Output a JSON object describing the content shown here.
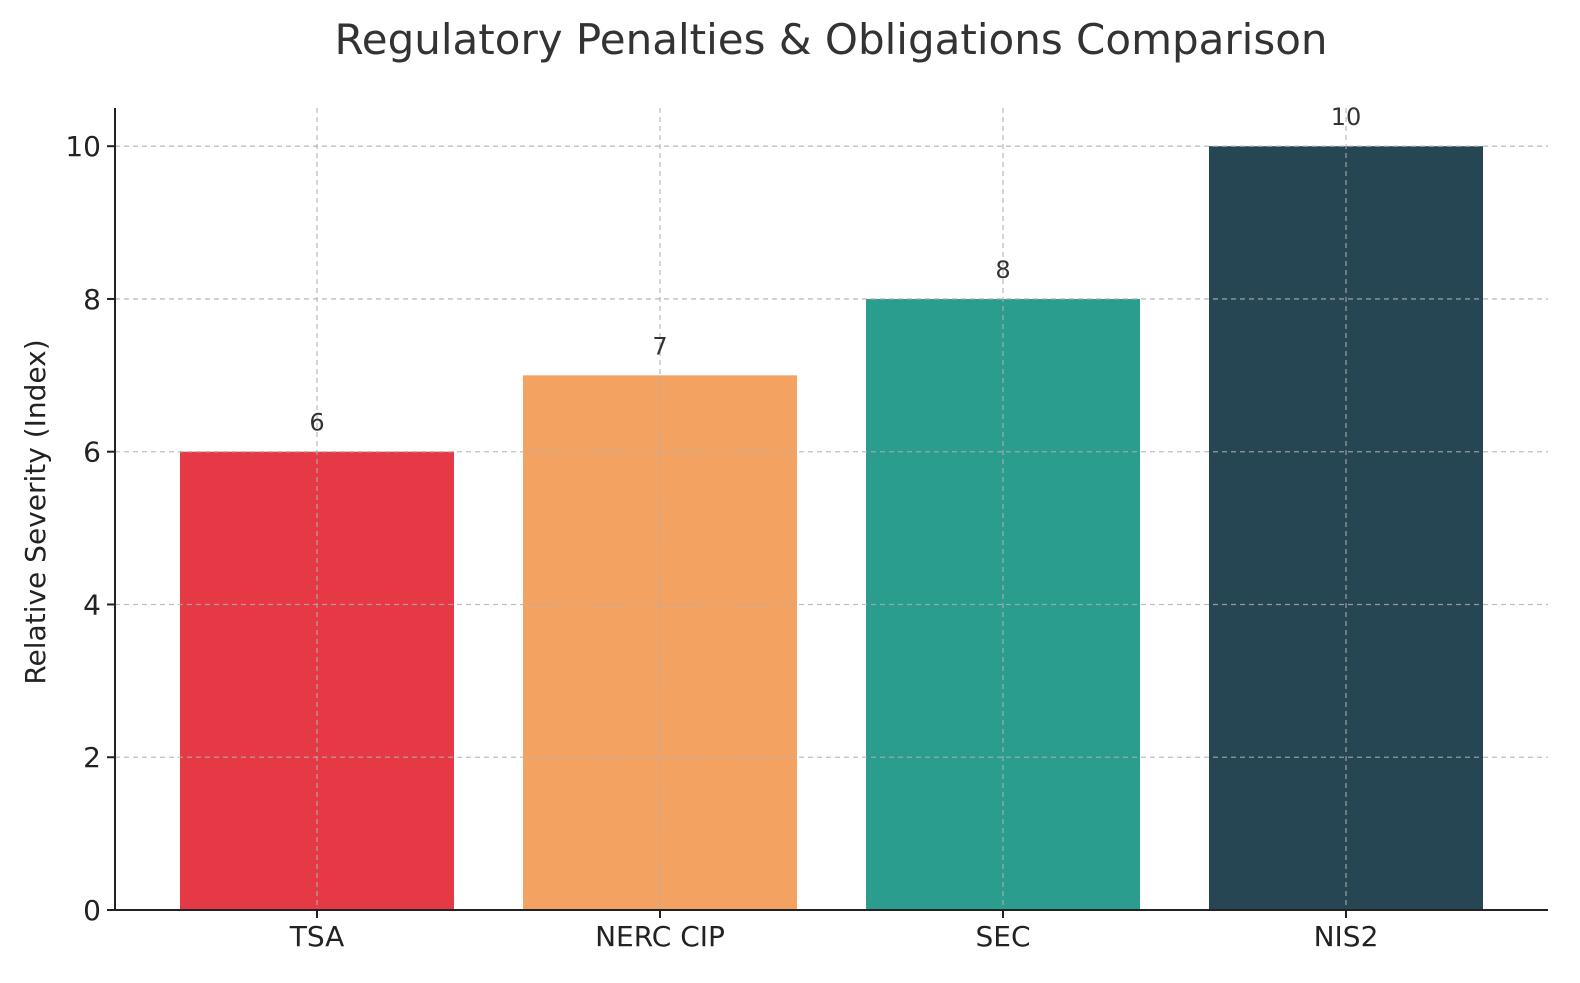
{
  "chart_data": {
    "type": "bar",
    "title": "Regulatory Penalties & Obligations Comparison",
    "xlabel": "",
    "ylabel": "Relative Severity (Index)",
    "categories": [
      "TSA",
      "NERC CIP",
      "SEC",
      "NIS2"
    ],
    "values": [
      6,
      7,
      8,
      10
    ],
    "bar_colors": [
      "#e63946",
      "#f4a261",
      "#2a9d8f",
      "#264653"
    ],
    "ylim": [
      0,
      10.5
    ],
    "yticks": [
      0,
      2,
      4,
      6,
      8,
      10
    ],
    "grid": true,
    "grid_style": "dashed",
    "data_labels": [
      "6",
      "7",
      "8",
      "10"
    ]
  }
}
